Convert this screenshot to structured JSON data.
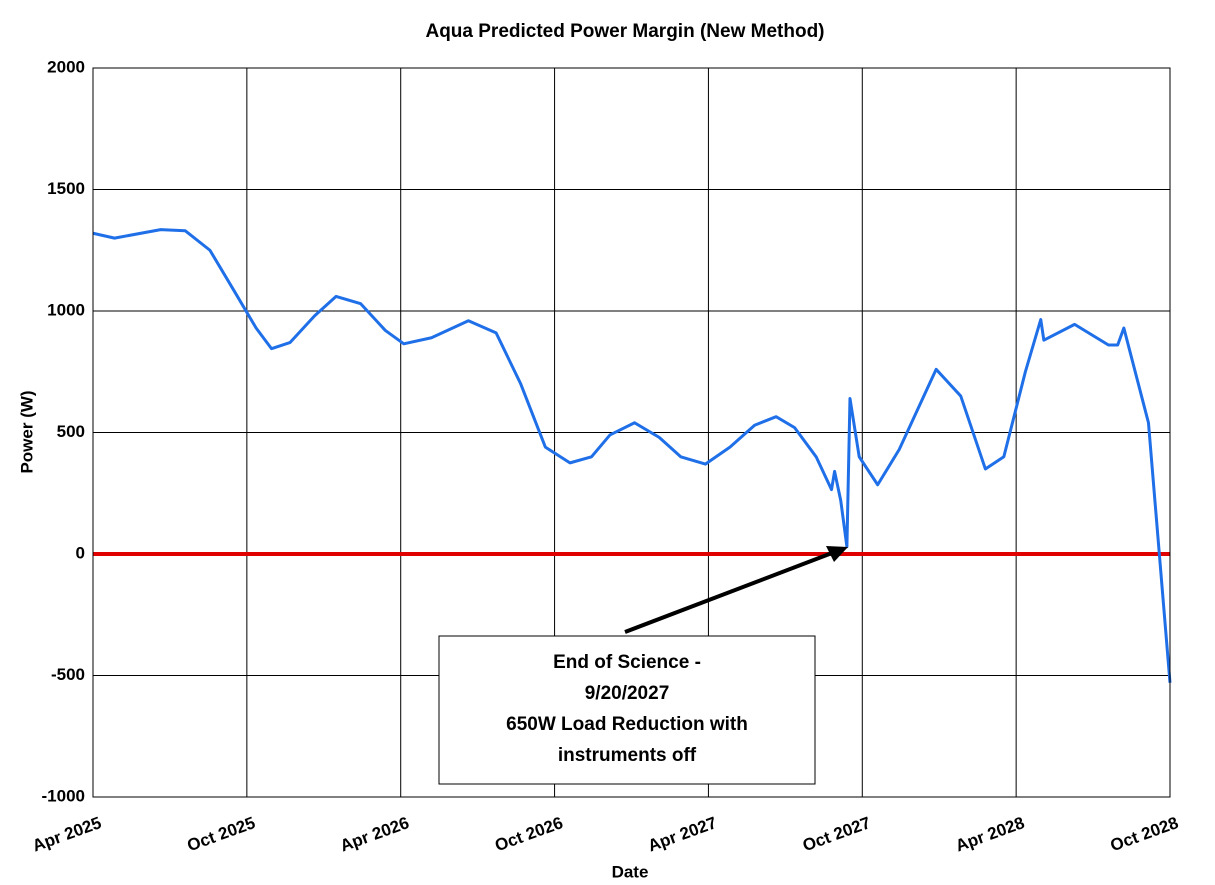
{
  "chart_data": {
    "type": "line",
    "title": "Aqua Predicted Power Margin (New Method)",
    "x_label": "Date",
    "y_label": "Power (W)",
    "xlim": [
      2025.25,
      2028.75
    ],
    "xticks": [
      {
        "value": 2025.25,
        "label": "Apr 2025"
      },
      {
        "value": 2025.75,
        "label": "Oct 2025"
      },
      {
        "value": 2026.25,
        "label": "Apr 2026"
      },
      {
        "value": 2026.75,
        "label": "Oct 2026"
      },
      {
        "value": 2027.25,
        "label": "Apr 2027"
      },
      {
        "value": 2027.75,
        "label": "Oct 2027"
      },
      {
        "value": 2028.25,
        "label": "Apr 2028"
      },
      {
        "value": 2028.75,
        "label": "Oct 2028"
      }
    ],
    "ylim": [
      -1000,
      2000
    ],
    "yticks": [
      -1000,
      -500,
      0,
      500,
      1000,
      1500,
      2000
    ],
    "grid": true,
    "x": [
      2025.25,
      2025.32,
      2025.47,
      2025.55,
      2025.63,
      2025.71,
      2025.78,
      2025.83,
      2025.89,
      2025.97,
      2026.04,
      2026.12,
      2026.2,
      2026.26,
      2026.35,
      2026.47,
      2026.56,
      2026.64,
      2026.72,
      2026.8,
      2026.87,
      2026.93,
      2027.01,
      2027.09,
      2027.16,
      2027.24,
      2027.32,
      2027.4,
      2027.47,
      2027.53,
      2027.6,
      2027.65,
      2027.66,
      2027.68,
      2027.7,
      2027.71,
      2027.74,
      2027.8,
      2027.87,
      2027.99,
      2028.07,
      2028.15,
      2028.21,
      2028.28,
      2028.33,
      2028.34,
      2028.44,
      2028.55,
      2028.58,
      2028.6,
      2028.68,
      2028.75
    ],
    "series": [
      {
        "color": "#1f6fe8",
        "values": [
          1320,
          1300,
          1335,
          1330,
          1250,
          1080,
          930,
          845,
          870,
          980,
          1060,
          1030,
          920,
          865,
          890,
          960,
          910,
          700,
          440,
          375,
          400,
          490,
          540,
          480,
          400,
          370,
          440,
          530,
          565,
          520,
          400,
          265,
          340,
          220,
          30,
          640,
          400,
          285,
          430,
          760,
          650,
          350,
          400,
          750,
          965,
          880,
          945,
          860,
          860,
          930,
          540,
          -530
        ]
      }
    ],
    "reference_line": {
      "value": 0,
      "color": "#e00000"
    },
    "annotation": {
      "lines": [
        "End of Science -",
        "9/20/2027",
        "650W Load Reduction with",
        "instruments off"
      ]
    }
  }
}
